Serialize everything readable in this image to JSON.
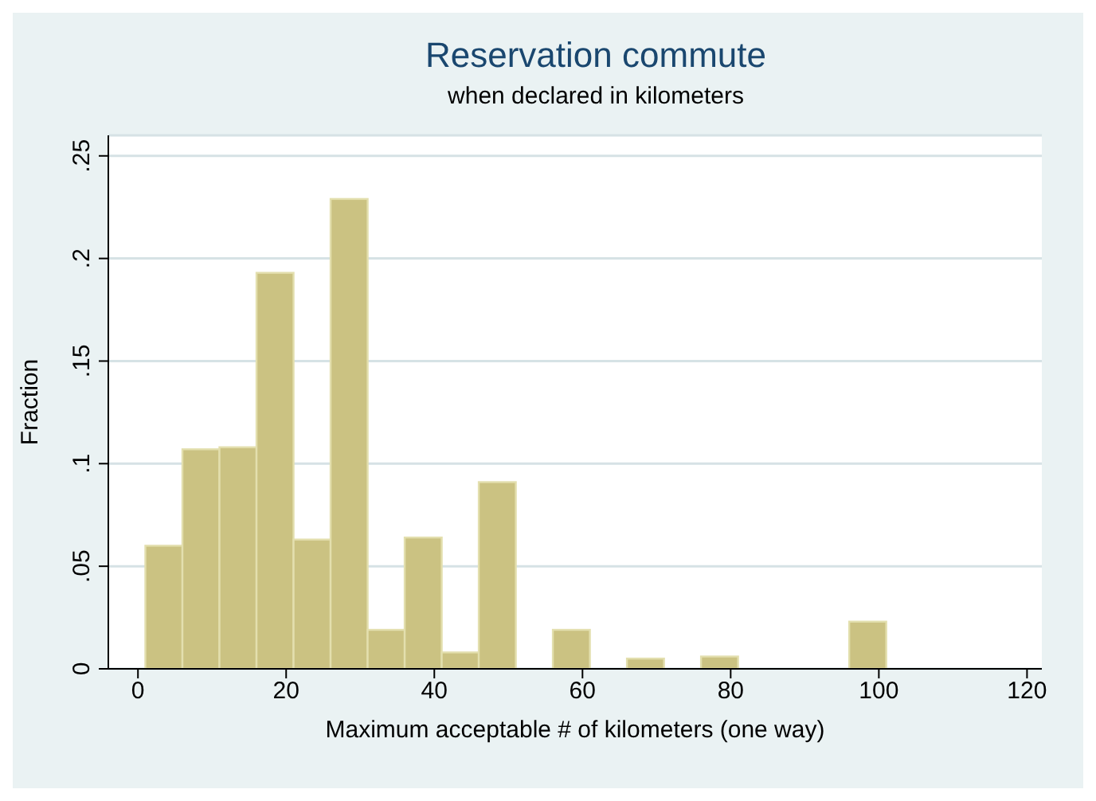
{
  "chart_data": {
    "type": "histogram",
    "title": "Reservation commute",
    "subtitle": "when declared in kilometers",
    "xlabel": "Maximum acceptable # of kilometers (one way)",
    "ylabel": "Fraction",
    "bins": [
      1,
      6,
      11,
      16,
      21,
      26,
      31,
      36,
      41,
      46,
      51,
      56,
      61,
      66,
      71,
      76,
      81,
      86,
      91,
      96,
      101,
      106,
      111,
      116,
      121
    ],
    "values": [
      0.06,
      0.107,
      0.108,
      0.193,
      0.063,
      0.229,
      0.019,
      0.064,
      0.008,
      0.091,
      0,
      0.019,
      0,
      0.005,
      0,
      0.006,
      0,
      0,
      0,
      0.023,
      0,
      0,
      0,
      0
    ],
    "color": "#cbc282",
    "xlim": [
      -4,
      122
    ],
    "xticks": [
      0,
      20,
      40,
      60,
      80,
      100,
      120
    ],
    "ylim": [
      0,
      0.26
    ],
    "yticks": [
      {
        "value": 0,
        "label": "0"
      },
      {
        "value": 0.05,
        "label": ".05"
      },
      {
        "value": 0.1,
        "label": ".1"
      },
      {
        "value": 0.15,
        "label": ".15"
      },
      {
        "value": 0.2,
        "label": ".2"
      },
      {
        "value": 0.25,
        "label": ".25"
      }
    ],
    "grid": "y"
  }
}
